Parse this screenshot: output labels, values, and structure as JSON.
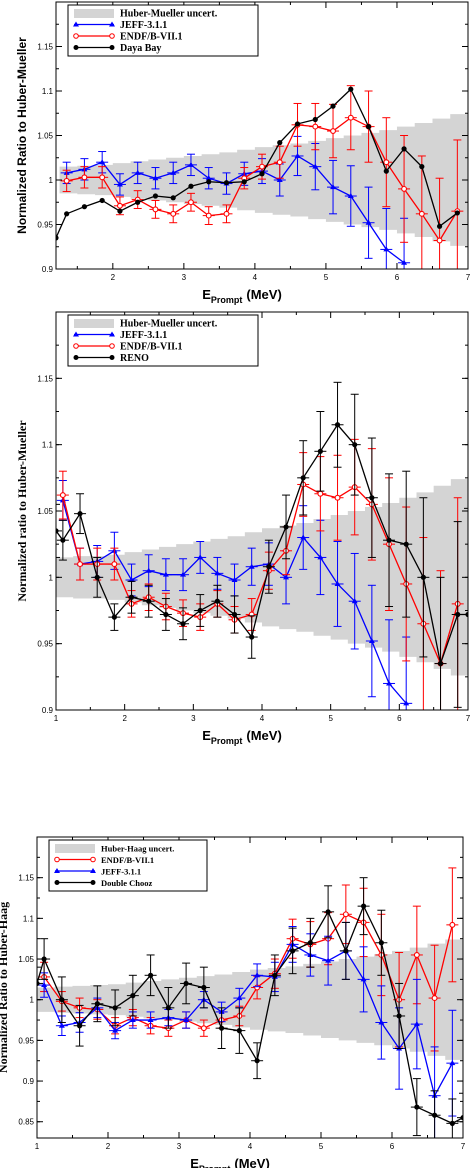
{
  "chart_data": [
    {
      "type": "line",
      "xlabel_main": "E",
      "xlabel_sub": "Prompt",
      "xlabel_unit": "(MeV)",
      "ylabel": "Normalized Ratio to Huber-Mueller",
      "xlim": [
        1.2,
        7
      ],
      "ylim": [
        0.9,
        1.2
      ],
      "xticks": [
        2,
        3,
        4,
        5,
        6,
        7
      ],
      "yticks": [
        0.9,
        0.95,
        1,
        1.05,
        1.1,
        1.15
      ],
      "ytick_labels": [
        "0.9",
        "0.95",
        "1",
        "1.05",
        "1.1",
        "1.15"
      ],
      "legend_position": "top-left",
      "band": {
        "name": "Huber-Mueller uncert.",
        "color": "#d4d4d4",
        "x": [
          1.25,
          1.5,
          1.75,
          2.0,
          2.25,
          2.5,
          2.75,
          3.0,
          3.25,
          3.5,
          3.75,
          4.0,
          4.25,
          4.5,
          4.75,
          5.0,
          5.25,
          5.5,
          5.75,
          6.0,
          6.25,
          6.5,
          6.75,
          7.0
        ],
        "lo": [
          0.985,
          0.984,
          0.983,
          0.981,
          0.979,
          0.977,
          0.975,
          0.973,
          0.971,
          0.969,
          0.966,
          0.963,
          0.961,
          0.959,
          0.956,
          0.953,
          0.95,
          0.947,
          0.944,
          0.94,
          0.936,
          0.931,
          0.926,
          0.92
        ],
        "hi": [
          1.015,
          1.016,
          1.017,
          1.019,
          1.021,
          1.023,
          1.025,
          1.027,
          1.029,
          1.031,
          1.034,
          1.037,
          1.039,
          1.041,
          1.044,
          1.047,
          1.05,
          1.053,
          1.056,
          1.06,
          1.064,
          1.069,
          1.074,
          1.08
        ]
      },
      "series": [
        {
          "name": "JEFF-3.1.1",
          "color": "#0000ff",
          "marker": "triangle",
          "x": [
            1.35,
            1.6,
            1.85,
            2.1,
            2.35,
            2.6,
            2.85,
            3.1,
            3.35,
            3.6,
            3.85,
            4.1,
            4.35,
            4.6,
            4.85,
            5.1,
            5.35,
            5.6,
            5.85,
            6.1
          ],
          "y": [
            1.008,
            1.012,
            1.02,
            0.995,
            1.008,
            1.002,
            1.008,
            1.017,
            1.002,
            0.996,
            1.007,
            1.01,
            1.0,
            1.027,
            1.015,
            0.992,
            0.982,
            0.952,
            0.922,
            0.907
          ],
          "err": [
            0.012,
            0.012,
            0.012,
            0.012,
            0.012,
            0.012,
            0.012,
            0.012,
            0.012,
            0.012,
            0.013,
            0.014,
            0.018,
            0.022,
            0.026,
            0.03,
            0.034,
            0.04,
            0.046,
            0.05
          ]
        },
        {
          "name": "ENDF/B-VII.1",
          "color": "#ff0000",
          "marker": "circle",
          "x": [
            1.35,
            1.6,
            1.85,
            2.1,
            2.35,
            2.6,
            2.85,
            3.1,
            3.35,
            3.6,
            3.85,
            4.1,
            4.35,
            4.6,
            4.85,
            5.1,
            5.35,
            5.6,
            5.85,
            6.1,
            6.35,
            6.6,
            6.85
          ],
          "y": [
            0.999,
            1.003,
            1.003,
            0.971,
            0.978,
            0.967,
            0.962,
            0.975,
            0.96,
            0.962,
            1.002,
            1.015,
            1.02,
            1.062,
            1.06,
            1.055,
            1.07,
            1.06,
            1.02,
            0.99,
            0.962,
            0.932,
            0.965
          ],
          "err": [
            0.012,
            0.012,
            0.012,
            0.01,
            0.01,
            0.01,
            0.01,
            0.01,
            0.01,
            0.01,
            0.012,
            0.014,
            0.018,
            0.024,
            0.026,
            0.03,
            0.036,
            0.04,
            0.05,
            0.06,
            0.065,
            0.07,
            0.08
          ]
        },
        {
          "name": "Daya Bay",
          "color": "#000000",
          "marker": "circle",
          "x": [
            1.2,
            1.35,
            1.6,
            1.85,
            2.1,
            2.35,
            2.6,
            2.85,
            3.1,
            3.35,
            3.6,
            3.85,
            4.1,
            4.35,
            4.6,
            4.85,
            5.1,
            5.35,
            5.6,
            5.85,
            6.1,
            6.35,
            6.6,
            6.85
          ],
          "y": [
            0.935,
            0.962,
            0.97,
            0.977,
            0.965,
            0.975,
            0.982,
            0.98,
            0.993,
            0.998,
            0.997,
            0.998,
            1.007,
            1.042,
            1.063,
            1.068,
            1.083,
            1.102,
            1.06,
            1.01,
            1.035,
            1.015,
            0.948,
            0.963
          ],
          "err": []
        }
      ]
    },
    {
      "type": "line",
      "xlabel_main": "E",
      "xlabel_sub": "Prompt",
      "xlabel_unit": "(MeV)",
      "ylabel": "Normalized ratio to Huber-Mueller",
      "xlim": [
        1,
        7
      ],
      "ylim": [
        0.9,
        1.2
      ],
      "xticks": [
        1,
        2,
        3,
        4,
        5,
        6,
        7
      ],
      "yticks": [
        0.9,
        0.95,
        1,
        1.05,
        1.1,
        1.15
      ],
      "ytick_labels": [
        "0.9",
        "0.95",
        "1",
        "1.05",
        "1.1",
        "1.15"
      ],
      "legend_position": "top-left",
      "band": {
        "name": "Huber-Mueller uncert.",
        "color": "#d4d4d4",
        "x": [
          1.0,
          1.25,
          1.5,
          1.75,
          2.0,
          2.25,
          2.5,
          2.75,
          3.0,
          3.25,
          3.5,
          3.75,
          4.0,
          4.25,
          4.5,
          4.75,
          5.0,
          5.25,
          5.5,
          5.75,
          6.0,
          6.25,
          6.5,
          6.75,
          7.0
        ],
        "lo": [
          0.985,
          0.984,
          0.984,
          0.983,
          0.981,
          0.979,
          0.977,
          0.975,
          0.973,
          0.971,
          0.969,
          0.966,
          0.963,
          0.961,
          0.959,
          0.956,
          0.953,
          0.95,
          0.947,
          0.944,
          0.94,
          0.936,
          0.931,
          0.926,
          0.92
        ],
        "hi": [
          1.015,
          1.016,
          1.016,
          1.017,
          1.019,
          1.021,
          1.023,
          1.025,
          1.027,
          1.029,
          1.031,
          1.034,
          1.037,
          1.039,
          1.041,
          1.044,
          1.047,
          1.05,
          1.053,
          1.056,
          1.06,
          1.064,
          1.069,
          1.074,
          1.08
        ]
      },
      "series": [
        {
          "name": "JEFF-3.1.1",
          "color": "#0000ff",
          "marker": "triangle",
          "x": [
            1.1,
            1.35,
            1.6,
            1.85,
            2.1,
            2.35,
            2.6,
            2.85,
            3.1,
            3.35,
            3.6,
            3.85,
            4.1,
            4.35,
            4.6,
            4.85,
            5.1,
            5.35,
            5.6,
            5.85,
            6.1
          ],
          "y": [
            1.058,
            1.01,
            1.012,
            1.02,
            0.998,
            1.005,
            1.002,
            1.002,
            1.015,
            1.003,
            0.998,
            1.008,
            1.01,
            1.0,
            1.03,
            1.015,
            0.995,
            0.982,
            0.952,
            0.92,
            0.905
          ],
          "err": [
            0.015,
            0.012,
            0.012,
            0.014,
            0.012,
            0.012,
            0.012,
            0.012,
            0.012,
            0.012,
            0.012,
            0.014,
            0.016,
            0.02,
            0.024,
            0.028,
            0.032,
            0.036,
            0.042,
            0.048,
            0.05
          ]
        },
        {
          "name": "ENDF/B-VII.1",
          "color": "#ff0000",
          "marker": "circle",
          "x": [
            1.1,
            1.35,
            1.6,
            1.85,
            2.1,
            2.35,
            2.6,
            2.85,
            3.1,
            3.35,
            3.6,
            3.85,
            4.1,
            4.35,
            4.6,
            4.85,
            5.1,
            5.35,
            5.6,
            5.85,
            6.1,
            6.35,
            6.6,
            6.85
          ],
          "y": [
            1.062,
            1.01,
            1.01,
            1.01,
            0.98,
            0.985,
            0.978,
            0.973,
            0.97,
            0.98,
            0.968,
            0.972,
            1.005,
            1.02,
            1.07,
            1.063,
            1.06,
            1.068,
            1.055,
            1.025,
            0.995,
            0.965,
            0.935,
            0.98
          ],
          "err": [
            0.018,
            0.012,
            0.012,
            0.012,
            0.01,
            0.01,
            0.01,
            0.01,
            0.01,
            0.01,
            0.01,
            0.012,
            0.014,
            0.018,
            0.024,
            0.028,
            0.032,
            0.036,
            0.042,
            0.05,
            0.058,
            0.065,
            0.07,
            0.08
          ]
        },
        {
          "name": "RENO",
          "color": "#000000",
          "marker": "circle",
          "x": [
            1.0,
            1.1,
            1.35,
            1.6,
            1.85,
            2.1,
            2.35,
            2.6,
            2.85,
            3.1,
            3.35,
            3.6,
            3.85,
            4.1,
            4.35,
            4.6,
            4.85,
            5.1,
            5.35,
            5.6,
            5.85,
            6.1,
            6.35,
            6.6,
            6.85,
            7.0
          ],
          "y": [
            1.035,
            1.028,
            1.048,
            1.0,
            0.97,
            0.985,
            0.982,
            0.972,
            0.965,
            0.975,
            0.982,
            0.972,
            0.955,
            1.008,
            1.038,
            1.075,
            1.095,
            1.115,
            1.1,
            1.06,
            1.028,
            1.025,
            1.0,
            0.935,
            0.972,
            0.972
          ],
          "err": [
            0.02,
            0.015,
            0.015,
            0.015,
            0.01,
            0.012,
            0.012,
            0.012,
            0.012,
            0.012,
            0.012,
            0.014,
            0.016,
            0.02,
            0.024,
            0.028,
            0.03,
            0.032,
            0.038,
            0.045,
            0.05,
            0.055,
            0.06,
            0.065,
            0.07,
            0.08
          ]
        }
      ]
    },
    {
      "type": "line",
      "xlabel_main": "E",
      "xlabel_sub": "Prompt",
      "xlabel_unit": "(MeV)",
      "ylabel": "Normalized Ratio to Huber-Haag",
      "xlim": [
        1,
        7
      ],
      "ylim": [
        0.83,
        1.2
      ],
      "xticks": [
        1,
        2,
        3,
        4,
        5,
        6,
        7
      ],
      "yticks": [
        0.85,
        0.9,
        0.95,
        1,
        1.05,
        1.1,
        1.15
      ],
      "ytick_labels": [
        "0.85",
        "0.9",
        "0.95",
        "1",
        "1.05",
        "1.1",
        "1.15"
      ],
      "legend_position": "top-left",
      "band": {
        "name": "Huber-Haag uncert.",
        "color": "#d4d4d4",
        "x": [
          1.0,
          1.25,
          1.5,
          1.75,
          2.0,
          2.25,
          2.5,
          2.75,
          3.0,
          3.25,
          3.5,
          3.75,
          4.0,
          4.25,
          4.5,
          4.75,
          5.0,
          5.25,
          5.5,
          5.75,
          6.0,
          6.25,
          6.5,
          6.75,
          7.0
        ],
        "lo": [
          0.985,
          0.984,
          0.983,
          0.982,
          0.981,
          0.979,
          0.977,
          0.975,
          0.973,
          0.971,
          0.969,
          0.966,
          0.963,
          0.961,
          0.959,
          0.956,
          0.953,
          0.95,
          0.947,
          0.944,
          0.94,
          0.936,
          0.931,
          0.926,
          0.92
        ],
        "hi": [
          1.015,
          1.016,
          1.017,
          1.018,
          1.019,
          1.021,
          1.023,
          1.025,
          1.027,
          1.029,
          1.031,
          1.034,
          1.037,
          1.039,
          1.041,
          1.044,
          1.047,
          1.05,
          1.053,
          1.056,
          1.06,
          1.064,
          1.069,
          1.074,
          1.08
        ]
      },
      "series": [
        {
          "name": "ENDF/B-VII.1",
          "color": "#ff0000",
          "marker": "circle",
          "x": [
            1.1,
            1.35,
            1.6,
            1.85,
            2.1,
            2.35,
            2.6,
            2.85,
            3.1,
            3.35,
            3.6,
            3.85,
            4.1,
            4.35,
            4.6,
            4.85,
            5.1,
            5.35,
            5.6,
            5.85,
            6.1,
            6.35,
            6.6,
            6.85
          ],
          "y": [
            1.028,
            0.998,
            0.99,
            0.988,
            0.968,
            0.978,
            0.968,
            0.965,
            0.975,
            0.965,
            0.975,
            0.98,
            1.015,
            1.032,
            1.075,
            1.068,
            1.075,
            1.105,
            1.095,
            1.055,
            1.0,
            1.055,
            1.002,
            1.092
          ],
          "err": [
            0.018,
            0.012,
            0.012,
            0.012,
            0.01,
            0.01,
            0.01,
            0.01,
            0.01,
            0.01,
            0.01,
            0.012,
            0.014,
            0.018,
            0.024,
            0.028,
            0.032,
            0.036,
            0.042,
            0.05,
            0.058,
            0.06,
            0.065,
            0.07
          ]
        },
        {
          "name": "JEFF-3.1.1",
          "color": "#0000ff",
          "marker": "triangle",
          "x": [
            1.1,
            1.35,
            1.6,
            1.85,
            2.1,
            2.35,
            2.6,
            2.85,
            3.1,
            3.35,
            3.6,
            3.85,
            4.1,
            4.35,
            4.6,
            4.85,
            5.1,
            5.35,
            5.6,
            5.85,
            6.1,
            6.35,
            6.6,
            6.85
          ],
          "y": [
            1.018,
            0.968,
            0.972,
            0.99,
            0.962,
            0.975,
            0.975,
            0.978,
            0.975,
            1.0,
            0.985,
            1.002,
            1.03,
            1.028,
            1.068,
            1.055,
            1.048,
            1.06,
            1.025,
            0.972,
            0.94,
            0.97,
            0.882,
            0.922
          ],
          "err": [
            0.015,
            0.012,
            0.012,
            0.012,
            0.01,
            0.01,
            0.01,
            0.01,
            0.01,
            0.01,
            0.012,
            0.012,
            0.014,
            0.018,
            0.022,
            0.026,
            0.03,
            0.035,
            0.04,
            0.045,
            0.05,
            0.055,
            0.06,
            0.065
          ]
        },
        {
          "name": "Double Chooz",
          "color": "#000000",
          "marker": "circle",
          "x": [
            1.0,
            1.1,
            1.35,
            1.6,
            1.85,
            2.1,
            2.35,
            2.6,
            2.85,
            3.1,
            3.35,
            3.6,
            3.85,
            4.1,
            4.35,
            4.6,
            4.85,
            5.1,
            5.35,
            5.6,
            5.85,
            6.1,
            6.35,
            6.6,
            6.85,
            7.0
          ],
          "y": [
            1.02,
            1.05,
            1.0,
            0.968,
            0.995,
            0.99,
            1.005,
            1.03,
            0.99,
            1.02,
            1.015,
            0.965,
            0.962,
            0.925,
            1.03,
            1.06,
            1.07,
            1.108,
            1.06,
            1.115,
            1.07,
            0.98,
            0.868,
            0.858,
            0.848,
            0.855
          ],
          "err": [
            0.02,
            0.025,
            0.028,
            0.025,
            0.022,
            0.022,
            0.025,
            0.025,
            0.025,
            0.025,
            0.025,
            0.025,
            0.028,
            0.022,
            0.025,
            0.028,
            0.03,
            0.032,
            0.035,
            0.035,
            0.04,
            0.04,
            0.035,
            0.03,
            0.03,
            0.03
          ]
        }
      ]
    }
  ]
}
